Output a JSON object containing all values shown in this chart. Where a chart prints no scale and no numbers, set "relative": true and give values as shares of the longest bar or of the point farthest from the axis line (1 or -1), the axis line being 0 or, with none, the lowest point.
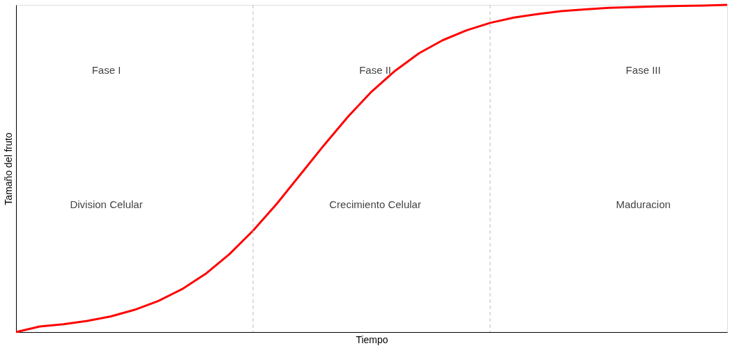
{
  "chart_data": {
    "type": "line",
    "relative": true,
    "xlabel": "Tiempo",
    "ylabel": "Tamaño del fruto",
    "categories": [
      null,
      null,
      null,
      null,
      null,
      null,
      null,
      null,
      null,
      null,
      null,
      null,
      null,
      null,
      null,
      null,
      null,
      null,
      null,
      null,
      null,
      null,
      null,
      null,
      null,
      null,
      null,
      null,
      null,
      null,
      null
    ],
    "series": [
      {
        "color": "#ff0000",
        "values": [
          0,
          0.017,
          0.024,
          0.034,
          0.048,
          0.068,
          0.095,
          0.131,
          0.178,
          0.238,
          0.31,
          0.392,
          0.482,
          0.572,
          0.658,
          0.735,
          0.799,
          0.852,
          0.892,
          0.922,
          0.945,
          0.961,
          0.972,
          0.981,
          0.986,
          0.991,
          0.993,
          0.995,
          0.997,
          0.998,
          1
        ]
      }
    ],
    "annotations": [
      "Fase I",
      "Fase II",
      "Fase III",
      "Division Celular",
      "Crecimiento Celular",
      "Maduracion"
    ]
  }
}
